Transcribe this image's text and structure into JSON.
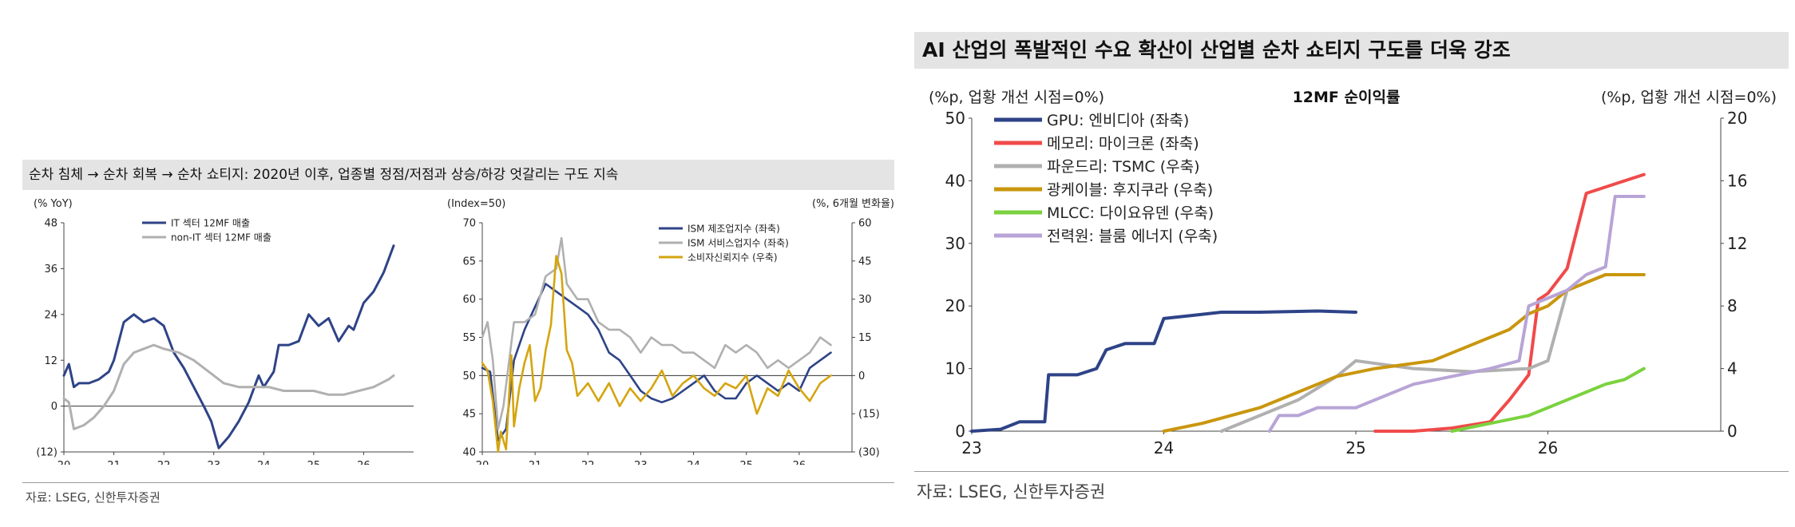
{
  "left_panel": {
    "title": "순차 침체 → 순차 회복 → 순차 쇼티지: 2020년 이후, 업종별 정점/저점과 상승/하강 엇갈리는 구도 지속",
    "source": "자료: LSEG, 신한투자증권"
  },
  "right_panel": {
    "title": "AI 산업의 폭발적인 수요 확산이 산업별 순차 쇼티지 구도를 더욱 강조",
    "source": "자료: LSEG, 신한투자증권"
  },
  "chart_data": [
    {
      "type": "line",
      "unit_label": "(% YoY)",
      "xlim": [
        20,
        27
      ],
      "ylim": [
        -12,
        48
      ],
      "x_ticks": [
        20,
        21,
        22,
        23,
        24,
        25,
        26
      ],
      "x_tick_labels": [
        "20",
        "21",
        "22",
        "23",
        "24",
        "25",
        "26"
      ],
      "y_ticks": [
        -12,
        0,
        12,
        24,
        36,
        48
      ],
      "y_tick_labels": [
        "(12)",
        "0",
        "12",
        "24",
        "36",
        "48"
      ],
      "series": [
        {
          "name": "IT 섹터 12MF 매출",
          "color": "#2e4387",
          "x": [
            20.0,
            20.1,
            20.2,
            20.3,
            20.5,
            20.7,
            20.9,
            21.0,
            21.2,
            21.4,
            21.6,
            21.8,
            22.0,
            22.2,
            22.4,
            22.6,
            22.8,
            22.95,
            23.1,
            23.3,
            23.5,
            23.7,
            23.9,
            24.0,
            24.2,
            24.3,
            24.5,
            24.7,
            24.9,
            25.1,
            25.3,
            25.5,
            25.7,
            25.8,
            26.0,
            26.2,
            26.4,
            26.6
          ],
          "y": [
            8,
            11,
            5,
            6,
            6,
            7,
            9,
            12,
            22,
            24,
            22,
            23,
            21,
            14,
            10,
            5,
            0,
            -4,
            -11,
            -8,
            -4,
            1,
            8,
            5,
            9,
            16,
            16,
            17,
            24,
            21,
            23,
            17,
            21,
            20,
            27,
            30,
            35,
            42
          ]
        },
        {
          "name": "non-IT 섹터 12MF 매출",
          "color": "#b0b0b0",
          "x": [
            20.0,
            20.1,
            20.2,
            20.4,
            20.6,
            20.8,
            21.0,
            21.2,
            21.4,
            21.6,
            21.8,
            22.0,
            22.3,
            22.6,
            22.9,
            23.2,
            23.5,
            23.8,
            24.1,
            24.4,
            24.7,
            25.0,
            25.3,
            25.6,
            25.9,
            26.2,
            26.5,
            26.6
          ],
          "y": [
            2,
            1,
            -6,
            -5,
            -3,
            0,
            4,
            11,
            14,
            15,
            16,
            15,
            14,
            12,
            9,
            6,
            5,
            5,
            5,
            4,
            4,
            4,
            3,
            3,
            4,
            5,
            7,
            8
          ]
        }
      ]
    },
    {
      "type": "line",
      "left_unit_label": "(Index=50)",
      "right_unit_label": "(%, 6개월 변화율)",
      "xlim": [
        20,
        27
      ],
      "ylim_left": [
        40,
        70
      ],
      "ylim_right": [
        -30,
        60
      ],
      "x_ticks": [
        20,
        21,
        22,
        23,
        24,
        25,
        26
      ],
      "x_tick_labels": [
        "20",
        "21",
        "22",
        "23",
        "24",
        "25",
        "26"
      ],
      "y_left_ticks": [
        40,
        45,
        50,
        55,
        60,
        65,
        70
      ],
      "y_left_tick_labels": [
        "40",
        "45",
        "50",
        "55",
        "60",
        "65",
        "70"
      ],
      "y_right_ticks": [
        -30,
        -15,
        0,
        15,
        30,
        45,
        60
      ],
      "y_right_tick_labels": [
        "(30)",
        "(15)",
        "0",
        "15",
        "30",
        "45",
        "60"
      ],
      "series": [
        {
          "name": "ISM 제조업지수 (좌축)",
          "color": "#2e4387",
          "axis": "left",
          "x": [
            20.0,
            20.15,
            20.3,
            20.45,
            20.6,
            20.8,
            21.0,
            21.2,
            21.4,
            21.6,
            21.8,
            22.0,
            22.2,
            22.4,
            22.6,
            22.8,
            23.0,
            23.2,
            23.4,
            23.6,
            23.8,
            24.0,
            24.2,
            24.4,
            24.6,
            24.8,
            25.0,
            25.2,
            25.4,
            25.6,
            25.8,
            26.0,
            26.2,
            26.4,
            26.6
          ],
          "y": [
            51,
            50.5,
            41.5,
            43,
            52,
            56,
            59,
            62,
            61,
            60,
            59,
            58,
            56,
            53,
            52,
            50,
            48,
            47,
            46.5,
            47,
            48,
            49,
            50,
            48,
            47,
            47,
            49,
            50,
            49,
            48,
            49,
            48,
            51,
            52,
            53
          ]
        },
        {
          "name": "ISM 서비스업지수 (좌축)",
          "color": "#b0b0b0",
          "axis": "left",
          "x": [
            20.0,
            20.1,
            20.2,
            20.3,
            20.4,
            20.6,
            20.8,
            21.0,
            21.2,
            21.4,
            21.5,
            21.6,
            21.8,
            22.0,
            22.2,
            22.4,
            22.6,
            22.8,
            23.0,
            23.2,
            23.4,
            23.6,
            23.8,
            24.0,
            24.2,
            24.4,
            24.6,
            24.8,
            25.0,
            25.2,
            25.4,
            25.6,
            25.8,
            26.0,
            26.2,
            26.4,
            26.6
          ],
          "y": [
            55,
            57,
            52,
            43,
            46,
            57,
            57,
            58,
            63,
            64,
            68,
            62,
            60,
            60,
            57,
            56,
            56,
            55,
            53,
            55,
            54,
            54,
            53,
            53,
            52,
            51,
            54,
            53,
            54,
            53,
            51,
            52,
            51,
            52,
            53,
            55,
            54
          ]
        },
        {
          "name": "소비자신뢰지수 (우축)",
          "color": "#d4a50f",
          "axis": "right",
          "x": [
            20.0,
            20.1,
            20.2,
            20.3,
            20.35,
            20.45,
            20.55,
            20.6,
            20.7,
            20.8,
            20.9,
            21.0,
            21.1,
            21.2,
            21.3,
            21.4,
            21.5,
            21.6,
            21.7,
            21.8,
            22.0,
            22.2,
            22.4,
            22.6,
            22.8,
            23.0,
            23.2,
            23.4,
            23.6,
            23.8,
            24.0,
            24.2,
            24.4,
            24.6,
            24.8,
            25.0,
            25.2,
            25.4,
            25.6,
            25.8,
            26.0,
            26.2,
            26.4,
            26.6
          ],
          "y": [
            5,
            2,
            -10,
            -30,
            -22,
            -29,
            8,
            -20,
            -5,
            5,
            12,
            -10,
            -5,
            10,
            20,
            47,
            40,
            10,
            5,
            -8,
            -3,
            -10,
            -3,
            -12,
            -5,
            -10,
            -5,
            2,
            -8,
            -3,
            0,
            -5,
            -8,
            -3,
            -5,
            0,
            -15,
            -5,
            -8,
            2,
            -5,
            -10,
            -3,
            0
          ]
        }
      ]
    },
    {
      "type": "line",
      "title": "12MF 순이익률",
      "left_unit_label": "(%p, 업황 개선 시점=0%)",
      "right_unit_label": "(%p, 업황 개선 시점=0%)",
      "xlim": [
        23,
        26.9
      ],
      "ylim_left": [
        0,
        50
      ],
      "ylim_right": [
        0,
        20
      ],
      "x_ticks": [
        23,
        24,
        25,
        26
      ],
      "x_tick_labels": [
        "23",
        "24",
        "25",
        "26"
      ],
      "y_left_ticks": [
        0,
        10,
        20,
        30,
        40,
        50
      ],
      "y_left_tick_labels": [
        "0",
        "10",
        "20",
        "30",
        "40",
        "50"
      ],
      "y_right_ticks": [
        0,
        4,
        8,
        12,
        16,
        20
      ],
      "y_right_tick_labels": [
        "0",
        "4",
        "8",
        "12",
        "16",
        "20"
      ],
      "series": [
        {
          "name": "GPU: 엔비디아 (좌축)",
          "color": "#2e4387",
          "axis": "left",
          "x": [
            23.0,
            23.15,
            23.25,
            23.38,
            23.4,
            23.55,
            23.65,
            23.7,
            23.8,
            23.95,
            24.0,
            24.15,
            24.3,
            24.5,
            24.8,
            25.0
          ],
          "y": [
            0,
            0.3,
            1.5,
            1.5,
            9,
            9,
            10,
            13,
            14,
            14,
            18,
            18.5,
            19,
            19,
            19.2,
            19
          ]
        },
        {
          "name": "메모리: 마이크론 (좌축)",
          "color": "#f04a4a",
          "axis": "left",
          "x": [
            25.1,
            25.3,
            25.5,
            25.6,
            25.7,
            25.8,
            25.9,
            25.95,
            26.0,
            26.1,
            26.2,
            26.4,
            26.5
          ],
          "y": [
            0,
            0,
            0.5,
            1,
            1.5,
            5,
            9,
            21,
            22,
            26,
            38,
            40,
            41
          ]
        },
        {
          "name": "파운드리: TSMC (우축)",
          "color": "#b0b0b0",
          "axis": "right",
          "x": [
            24.3,
            24.5,
            24.7,
            24.9,
            25.0,
            25.3,
            25.6,
            25.9,
            26.0,
            26.1,
            26.2,
            26.3,
            26.5
          ],
          "y": [
            0,
            1,
            2,
            3.5,
            4.5,
            4,
            3.8,
            4,
            4.5,
            9,
            9.5,
            10,
            10
          ]
        },
        {
          "name": "광케이블: 후지쿠라 (우축)",
          "color": "#c9960e",
          "axis": "right",
          "x": [
            24.0,
            24.2,
            24.5,
            24.7,
            24.9,
            25.1,
            25.4,
            25.6,
            25.8,
            25.9,
            26.0,
            26.1,
            26.2,
            26.3,
            26.5
          ],
          "y": [
            0,
            0.5,
            1.5,
            2.5,
            3.5,
            4,
            4.5,
            5.5,
            6.5,
            7.5,
            8,
            9,
            9.5,
            10,
            10
          ]
        },
        {
          "name": "MLCC: 다이요유덴 (우축)",
          "color": "#7bd23f",
          "axis": "right",
          "x": [
            25.5,
            25.7,
            25.9,
            26.0,
            26.1,
            26.2,
            26.3,
            26.4,
            26.5
          ],
          "y": [
            0,
            0.5,
            1,
            1.5,
            2,
            2.5,
            3,
            3.3,
            4
          ]
        },
        {
          "name": "전력원: 블룸 에너지 (우축)",
          "color": "#b8a4d6",
          "axis": "right",
          "x": [
            24.55,
            24.6,
            24.7,
            24.8,
            25.0,
            25.3,
            25.5,
            25.7,
            25.85,
            25.9,
            26.0,
            26.1,
            26.2,
            26.3,
            26.35,
            26.4,
            26.5
          ],
          "y": [
            0,
            1,
            1,
            1.5,
            1.5,
            3,
            3.5,
            4,
            4.5,
            8,
            8.5,
            9,
            10,
            10.5,
            15,
            15,
            15
          ]
        }
      ]
    }
  ]
}
